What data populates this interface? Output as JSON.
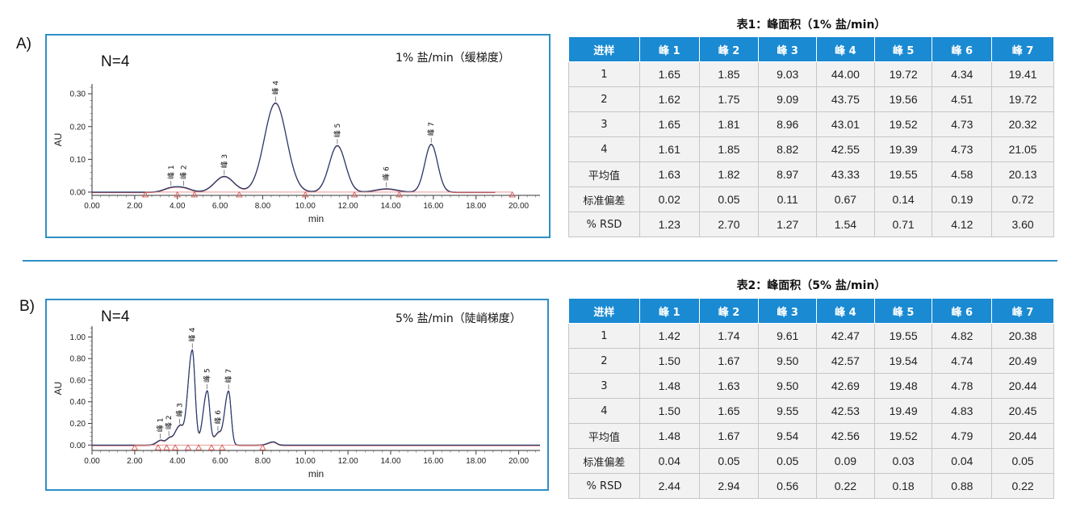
{
  "panels": [
    {
      "panel_label": "A)",
      "n_label": "N=4",
      "condition_label": "1% 盐/min（缓梯度）",
      "table_title": "表1：峰面积（1% 盐/min）",
      "chart_data": {
        "type": "line",
        "xlabel": "min",
        "ylabel": "AU",
        "xlim": [
          0,
          21
        ],
        "ylim": [
          -0.01,
          0.33
        ],
        "x_ticks": [
          "0.00",
          "2.00",
          "4.00",
          "6.00",
          "8.00",
          "10.00",
          "12.00",
          "14.00",
          "16.00",
          "18.00",
          "20.00"
        ],
        "y_ticks": [
          "0.00",
          "0.10",
          "0.20",
          "0.30"
        ],
        "grid": false,
        "peaks": [
          {
            "name": "峰 1",
            "rt": 3.7,
            "height": 0.012,
            "width": 0.35
          },
          {
            "name": "峰 2",
            "rt": 4.3,
            "height": 0.012,
            "width": 0.35
          },
          {
            "name": "峰 3",
            "rt": 6.2,
            "height": 0.048,
            "width": 0.45
          },
          {
            "name": "峰 4",
            "rt": 8.6,
            "height": 0.272,
            "width": 0.52
          },
          {
            "name": "峰 5",
            "rt": 11.5,
            "height": 0.142,
            "width": 0.38
          },
          {
            "name": "峰 6",
            "rt": 13.8,
            "height": 0.01,
            "width": 0.5
          },
          {
            "name": "峰 7",
            "rt": 15.9,
            "height": 0.146,
            "width": 0.3
          }
        ],
        "baseline_markers": [
          2.5,
          4.0,
          4.8,
          6.9,
          10.0,
          12.3,
          14.4,
          19.7
        ],
        "trace_end": 18.9,
        "trace_colors": [
          "#1f3f73",
          "#c23c3c"
        ]
      },
      "table": {
        "headers": [
          "进样",
          "峰 1",
          "峰 2",
          "峰 3",
          "峰 4",
          "峰 5",
          "峰 6",
          "峰 7"
        ],
        "rows": [
          [
            "1",
            "1.65",
            "1.85",
            "9.03",
            "44.00",
            "19.72",
            "4.34",
            "19.41"
          ],
          [
            "2",
            "1.62",
            "1.75",
            "9.09",
            "43.75",
            "19.56",
            "4.51",
            "19.72"
          ],
          [
            "3",
            "1.65",
            "1.81",
            "8.96",
            "43.01",
            "19.52",
            "4.73",
            "20.32"
          ],
          [
            "4",
            "1.61",
            "1.85",
            "8.82",
            "42.55",
            "19.39",
            "4.73",
            "21.05"
          ],
          [
            "平均值",
            "1.63",
            "1.82",
            "8.97",
            "43.33",
            "19.55",
            "4.58",
            "20.13"
          ],
          [
            "标准偏差",
            "0.02",
            "0.05",
            "0.11",
            "0.67",
            "0.14",
            "0.19",
            "0.72"
          ],
          [
            "% RSD",
            "1.23",
            "2.70",
            "1.27",
            "1.54",
            "0.71",
            "4.12",
            "3.60"
          ]
        ]
      }
    },
    {
      "panel_label": "B)",
      "n_label": "N=4",
      "condition_label": "5% 盐/min（陡峭梯度）",
      "table_title": "表2：峰面积（5% 盐/min）",
      "chart_data": {
        "type": "line",
        "xlabel": "min",
        "ylabel": "AU",
        "xlim": [
          0,
          21
        ],
        "ylim": [
          -0.05,
          1.1
        ],
        "x_ticks": [
          "0.00",
          "2.00",
          "4.00",
          "6.00",
          "8.00",
          "10.00",
          "12.00",
          "14.00",
          "16.00",
          "18.00",
          "20.00"
        ],
        "y_ticks": [
          "0.00",
          "0.20",
          "0.40",
          "0.60",
          "0.80",
          "1.00"
        ],
        "grid": false,
        "peaks": [
          {
            "name": "峰 1",
            "rt": 3.2,
            "height": 0.04,
            "width": 0.12
          },
          {
            "name": "峰 2",
            "rt": 3.6,
            "height": 0.05,
            "width": 0.12
          },
          {
            "name": "峰 3",
            "rt": 4.1,
            "height": 0.17,
            "width": 0.15
          },
          {
            "name": "峰 4",
            "rt": 4.7,
            "height": 0.88,
            "width": 0.13
          },
          {
            "name": "峰 5",
            "rt": 5.4,
            "height": 0.5,
            "width": 0.12
          },
          {
            "name": "峰 6",
            "rt": 5.9,
            "height": 0.1,
            "width": 0.12
          },
          {
            "name": "峰 7",
            "rt": 6.4,
            "height": 0.5,
            "width": 0.12
          },
          {
            "name": "",
            "rt": 8.5,
            "height": 0.03,
            "width": 0.15
          }
        ],
        "baseline_markers": [
          2.0,
          3.1,
          3.5,
          3.9,
          4.5,
          5.0,
          5.6,
          6.1,
          8.0
        ],
        "trace_end": 21.0,
        "trace_colors": [
          "#1f3f73",
          "#c23c3c"
        ]
      },
      "table": {
        "headers": [
          "进样",
          "峰 1",
          "峰 2",
          "峰 3",
          "峰 4",
          "峰 5",
          "峰 6",
          "峰 7"
        ],
        "rows": [
          [
            "1",
            "1.42",
            "1.74",
            "9.61",
            "42.47",
            "19.55",
            "4.82",
            "20.38"
          ],
          [
            "2",
            "1.50",
            "1.67",
            "9.50",
            "42.57",
            "19.54",
            "4.74",
            "20.49"
          ],
          [
            "3",
            "1.48",
            "1.63",
            "9.50",
            "42.69",
            "19.48",
            "4.78",
            "20.44"
          ],
          [
            "4",
            "1.50",
            "1.65",
            "9.55",
            "42.53",
            "19.49",
            "4.83",
            "20.45"
          ],
          [
            "平均值",
            "1.48",
            "1.67",
            "9.54",
            "42.56",
            "19.52",
            "4.79",
            "20.44"
          ],
          [
            "标准偏差",
            "0.04",
            "0.05",
            "0.05",
            "0.09",
            "0.03",
            "0.04",
            "0.05"
          ],
          [
            "% RSD",
            "2.44",
            "2.94",
            "0.56",
            "0.22",
            "0.18",
            "0.88",
            "0.22"
          ]
        ]
      }
    }
  ]
}
